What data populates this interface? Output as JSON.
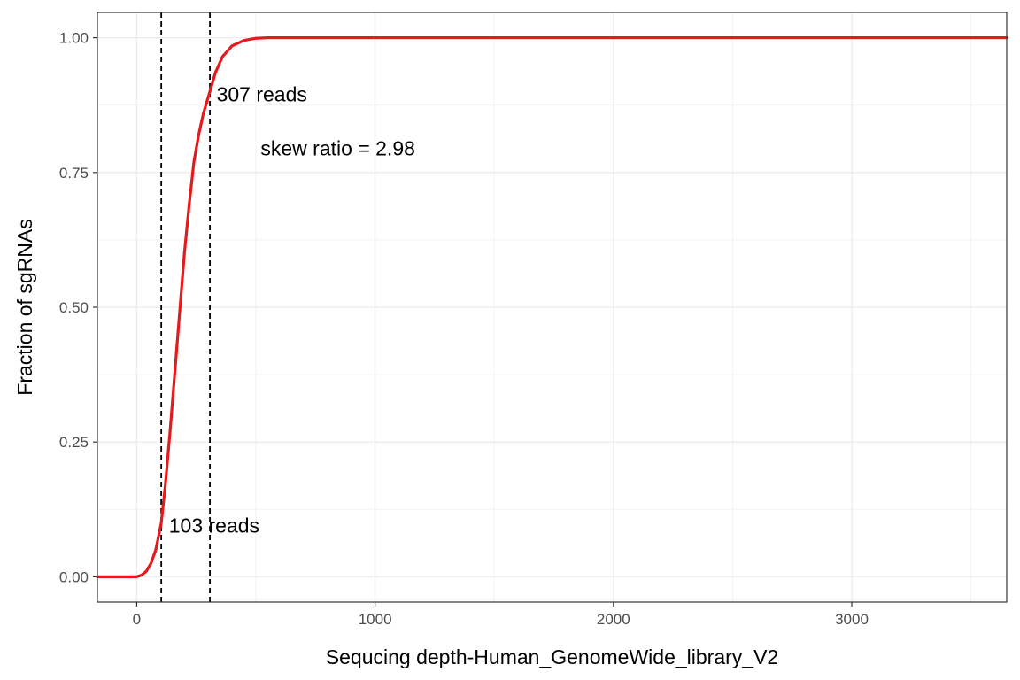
{
  "chart_data": {
    "type": "line",
    "title": "",
    "xlabel": "Sequcing depth-Human_GenomeWide_library_V2",
    "ylabel": "Fraction of sgRNAs",
    "xlim": [
      -165,
      3650
    ],
    "ylim": [
      -0.047,
      1.047
    ],
    "x_ticks": [
      0,
      1000,
      2000,
      3000
    ],
    "x_tick_labels": [
      "0",
      "1000",
      "2000",
      "3000"
    ],
    "y_ticks": [
      0,
      0.25,
      0.5,
      0.75,
      1.0
    ],
    "y_tick_labels": [
      "0.00",
      "0.25",
      "0.50",
      "0.75",
      "1.00"
    ],
    "grid": true,
    "series": [
      {
        "color": "#e41a1c",
        "x": [
          -165,
          0,
          20,
          40,
          60,
          80,
          103,
          120,
          140,
          160,
          180,
          200,
          220,
          240,
          260,
          280,
          307,
          330,
          360,
          400,
          450,
          500,
          550,
          650,
          1000,
          2000,
          3000,
          3650
        ],
        "y": [
          0,
          0,
          0.003,
          0.01,
          0.025,
          0.05,
          0.1,
          0.17,
          0.27,
          0.38,
          0.49,
          0.6,
          0.69,
          0.77,
          0.82,
          0.86,
          0.9,
          0.935,
          0.965,
          0.985,
          0.995,
          0.999,
          1.0,
          1.0,
          1.0,
          1.0,
          1.0,
          1.0
        ]
      }
    ],
    "vlines": [
      {
        "x": 103,
        "style": "dashed",
        "color": "#000000"
      },
      {
        "x": 307,
        "style": "dashed",
        "color": "#000000"
      }
    ],
    "annotations": [
      {
        "text": "307 reads",
        "x": 335,
        "y": 0.895
      },
      {
        "text": "skew ratio = 2.98",
        "x": 520,
        "y": 0.795
      },
      {
        "text": "103 reads",
        "x": 135,
        "y": 0.095
      }
    ]
  }
}
